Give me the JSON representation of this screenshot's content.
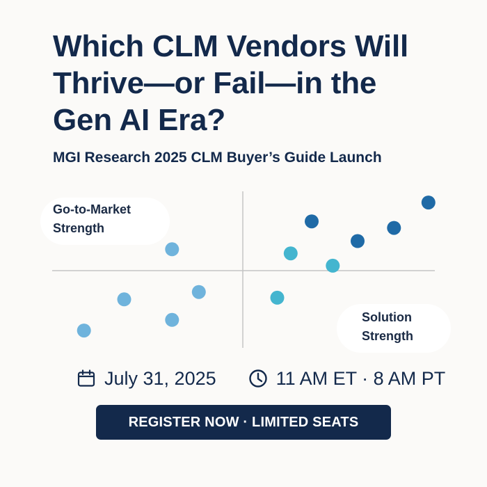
{
  "headline": {
    "line1": "Which CLM Vendors Will",
    "line2": "Thrive—or Fail—in the",
    "line3": "Gen AI Era?"
  },
  "subtitle": "MGI Research 2025 CLM Buyer’s Guide Launch",
  "chart_data": {
    "type": "scatter",
    "title": "",
    "ylabel_lines": [
      "Go-to-Market",
      "Strength"
    ],
    "xlabel_lines": [
      "Solution",
      "Strength"
    ],
    "xlim": [
      -10,
      10
    ],
    "ylim": [
      -10,
      10
    ],
    "grid": false,
    "axes": "quadrant crosshair at origin",
    "points": [
      {
        "x": -8.3,
        "y": -7.3,
        "tier": "light"
      },
      {
        "x": -6.2,
        "y": -3.5,
        "tier": "light"
      },
      {
        "x": -3.7,
        "y": -6.0,
        "tier": "light"
      },
      {
        "x": -2.3,
        "y": -2.6,
        "tier": "light"
      },
      {
        "x": -3.7,
        "y": 2.6,
        "tier": "light"
      },
      {
        "x": 1.8,
        "y": -3.3,
        "tier": "teal"
      },
      {
        "x": 2.5,
        "y": 2.1,
        "tier": "teal"
      },
      {
        "x": 4.7,
        "y": 0.6,
        "tier": "teal"
      },
      {
        "x": 3.6,
        "y": 6.0,
        "tier": "dark"
      },
      {
        "x": 6.0,
        "y": 3.6,
        "tier": "dark"
      },
      {
        "x": 7.9,
        "y": 5.2,
        "tier": "dark"
      },
      {
        "x": 9.7,
        "y": 8.3,
        "tier": "dark"
      }
    ],
    "colors": {
      "light": "#6fb3dc",
      "teal": "#44b5cf",
      "dark": "#1f6aa6",
      "axis": "#c4c4c4"
    }
  },
  "event": {
    "calendar_icon": "calendar-icon",
    "date": "July 31, 2025",
    "clock_icon": "clock-icon",
    "time": "11 AM ET · 8 AM PT"
  },
  "cta": {
    "label": "REGISTER NOW · LIMITED SEATS"
  },
  "colors": {
    "navy": "#13294b",
    "background": "#fbfaf8"
  }
}
